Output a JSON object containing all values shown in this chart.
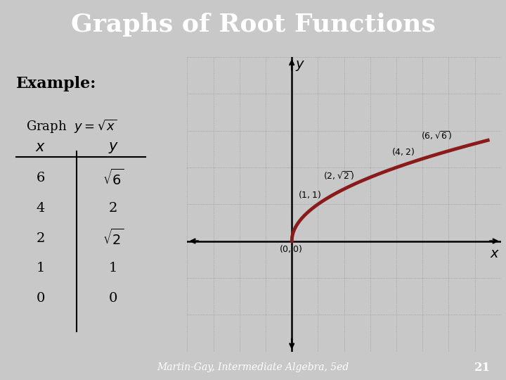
{
  "title": "Graphs of Root Functions",
  "title_bg": "#1a3a6b",
  "title_color": "#ffffff",
  "slide_bg": "#c8c8c8",
  "footer_bg": "#1a3a6b",
  "footer_text": "Martin-Gay, Intermediate Algebra, 5ed",
  "footer_number": "21",
  "example_label": "Example:",
  "table_x_labels": [
    "6",
    "4",
    "2",
    "1",
    "0"
  ],
  "table_y_labels": [
    "$\\sqrt{6}$",
    "2",
    "$\\sqrt{2}$",
    "1",
    "0"
  ],
  "curve_color": "#8b1a1a",
  "curve_lw": 3.5,
  "grid_color": "#999999",
  "sep_color": "#7a1a1a",
  "xlim": [
    -4,
    8
  ],
  "ylim": [
    -3,
    5
  ]
}
